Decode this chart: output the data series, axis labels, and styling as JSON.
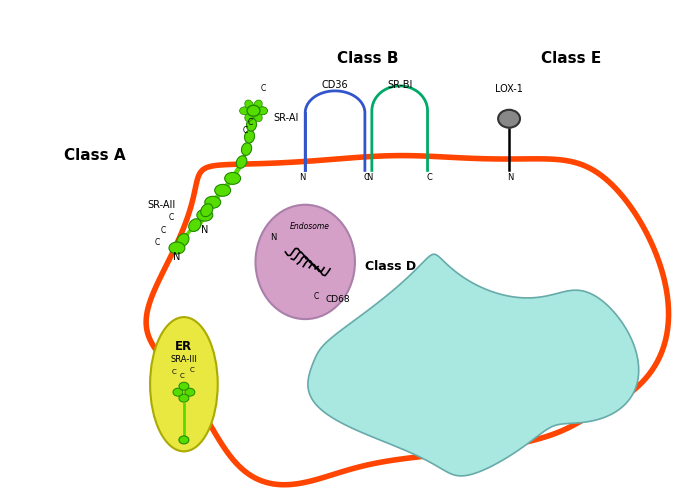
{
  "background_color": "#ffffff",
  "cell_membrane_color": "#ff4500",
  "cell_membrane_lw": 4,
  "nucleus_color": "#a8e8e0",
  "endosome_color": "#d4a0c8",
  "er_color": "#e8e840",
  "class_a_label": "Class A",
  "class_b_label": "Class B",
  "class_d_label": "Class D",
  "class_e_label": "Class E",
  "sr_ai_label": "SR-AI",
  "sr_aii_label": "SR-AII",
  "cd36_label": "CD36",
  "sr_bi_label": "SR-BI",
  "lox1_label": "LOX-1",
  "cd68_label": "CD68",
  "er_label": "ER",
  "sra_iii_label": "SRA-III",
  "endosome_label": "Endosome",
  "cd36_color": "#3355cc",
  "sr_bi_color": "#00aa66",
  "green_color": "#55dd00",
  "dark_green": "#228800",
  "lox1_head_color": "#888888"
}
